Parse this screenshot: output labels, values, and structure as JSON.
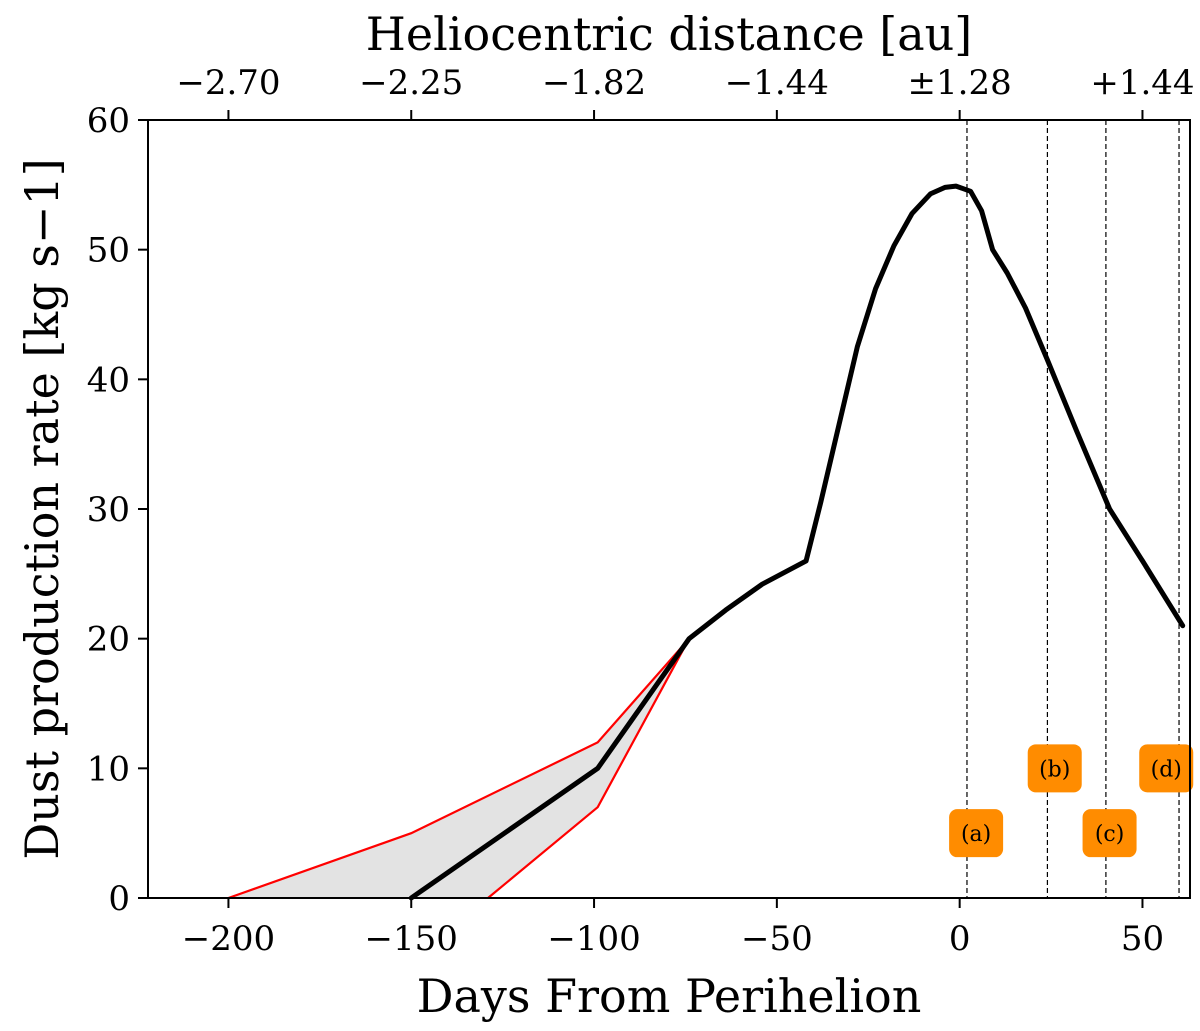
{
  "chart_data": {
    "type": "line",
    "xlabel": "Days From Perihelion",
    "ylabel": "Dust production rate [kg s−1]",
    "top_xlabel": "Heliocentric distance [au]",
    "xlim": [
      -222,
      63
    ],
    "ylim": [
      0,
      60
    ],
    "x_ticks": [
      {
        "value": -200,
        "label": "−200"
      },
      {
        "value": -150,
        "label": "−150"
      },
      {
        "value": -100,
        "label": "−100"
      },
      {
        "value": -50,
        "label": "−50"
      },
      {
        "value": 0,
        "label": "0"
      },
      {
        "value": 50,
        "label": "50"
      }
    ],
    "y_ticks": [
      {
        "value": 0,
        "label": "0"
      },
      {
        "value": 10,
        "label": "10"
      },
      {
        "value": 20,
        "label": "20"
      },
      {
        "value": 30,
        "label": "30"
      },
      {
        "value": 40,
        "label": "40"
      },
      {
        "value": 50,
        "label": "50"
      },
      {
        "value": 60,
        "label": "60"
      }
    ],
    "top_ticks": [
      {
        "value": -200,
        "label": "−2.70"
      },
      {
        "value": -150,
        "label": "−2.25"
      },
      {
        "value": -100,
        "label": "−1.82"
      },
      {
        "value": -50,
        "label": "−1.44"
      },
      {
        "value": 0,
        "label": "±1.28"
      },
      {
        "value": 50,
        "label": "+1.44"
      }
    ],
    "series": [
      {
        "name": "dust production rate",
        "color": "#000000",
        "x": [
          -150,
          -99,
          -74,
          -64,
          -54,
          -42,
          -38,
          -33,
          -28,
          -23,
          -18,
          -13,
          -8,
          -4,
          -1,
          1,
          3,
          6,
          9,
          13,
          18,
          24,
          32,
          41,
          50,
          61
        ],
        "y": [
          0,
          10,
          20,
          22.2,
          24.2,
          26,
          30.5,
          36.5,
          42.5,
          47,
          50.3,
          52.8,
          54.3,
          54.8,
          54.9,
          54.7,
          54.5,
          53,
          50,
          48.2,
          45.5,
          41.5,
          36,
          30,
          26,
          21
        ]
      },
      {
        "name": "upper bound",
        "color": "#ff0000",
        "x": [
          -200,
          -150,
          -99,
          -74
        ],
        "y": [
          0,
          5,
          12,
          20
        ]
      },
      {
        "name": "lower bound",
        "color": "#ff0000",
        "x": [
          -129,
          -99,
          -74
        ],
        "y": [
          0,
          7,
          20
        ]
      }
    ],
    "band_fill": "#e3e3e3",
    "vlines": [
      2,
      24,
      40,
      60
    ],
    "annotations": [
      {
        "label": "(a)",
        "x": 4.5,
        "y": 5
      },
      {
        "label": "(b)",
        "x": 26,
        "y": 10
      },
      {
        "label": "(c)",
        "x": 41,
        "y": 5
      },
      {
        "label": "(d)",
        "x": 56.5,
        "y": 10
      }
    ],
    "annotation_color": "#ff8c00"
  }
}
